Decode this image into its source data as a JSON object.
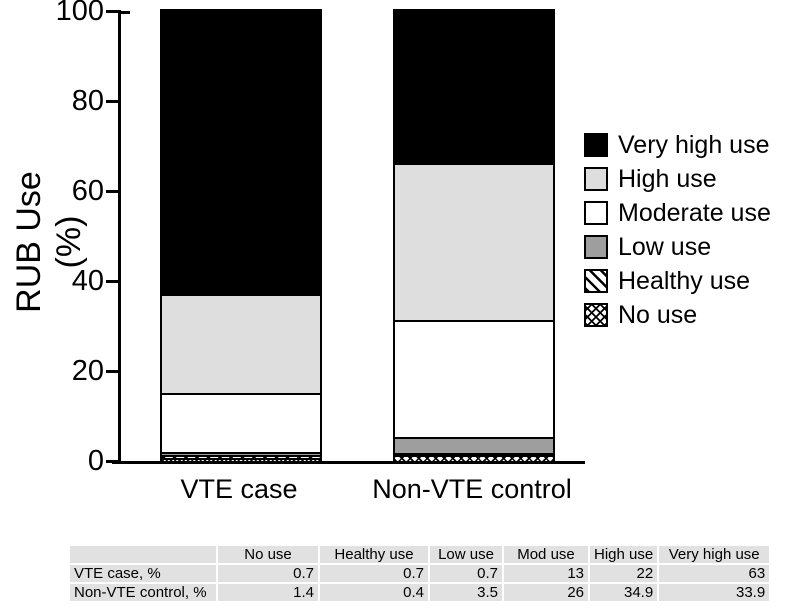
{
  "chart_data": {
    "type": "bar",
    "subtype": "stacked-vertical",
    "title": "",
    "ylabel": "RUB Use (%)",
    "xlabel": "",
    "ylim": [
      0,
      100
    ],
    "yticks": [
      0,
      20,
      40,
      60,
      80,
      100
    ],
    "grid": false,
    "legend_position": "right",
    "categories": [
      "VTE case",
      "Non-VTE control"
    ],
    "series": [
      {
        "name": "No use",
        "values": [
          0.7,
          1.4
        ],
        "pattern": "crosshatch",
        "color": "#ffffff"
      },
      {
        "name": "Healthy use",
        "values": [
          0.7,
          0.4
        ],
        "pattern": "diagonal",
        "color": "#ffffff"
      },
      {
        "name": "Low use",
        "values": [
          0.7,
          3.5
        ],
        "pattern": "solid",
        "color": "#9e9e9e"
      },
      {
        "name": "Moderate use",
        "values": [
          13,
          26
        ],
        "pattern": "solid",
        "color": "#ffffff"
      },
      {
        "name": "High use",
        "values": [
          22,
          34.9
        ],
        "pattern": "solid",
        "color": "#dedede"
      },
      {
        "name": "Very high use",
        "values": [
          63,
          33.9
        ],
        "pattern": "solid",
        "color": "#000000"
      }
    ],
    "legend_order_top_to_bottom": [
      "Very high use",
      "High use",
      "Moderate use",
      "Low use",
      "Healthy use",
      "No use"
    ]
  },
  "table": {
    "columns": [
      "",
      "No use",
      "Healthy use",
      "Low use",
      "Mod use",
      "High use",
      "Very high use"
    ],
    "rows": [
      {
        "label": "VTE case, %",
        "values": [
          "0.7",
          "0.7",
          "0.7",
          "13",
          "22",
          "63"
        ]
      },
      {
        "label": "Non-VTE control, %",
        "values": [
          "1.4",
          "0.4",
          "3.5",
          "26",
          "34.9",
          "33.9"
        ]
      }
    ]
  },
  "colors": {
    "axis": "#000000",
    "bar_border": "#000000",
    "high_use_fill": "#dedede",
    "low_use_fill": "#9e9e9e",
    "very_high_use_fill": "#000000",
    "table_cell_bg": "#e1e1e1",
    "background": "#ffffff"
  }
}
